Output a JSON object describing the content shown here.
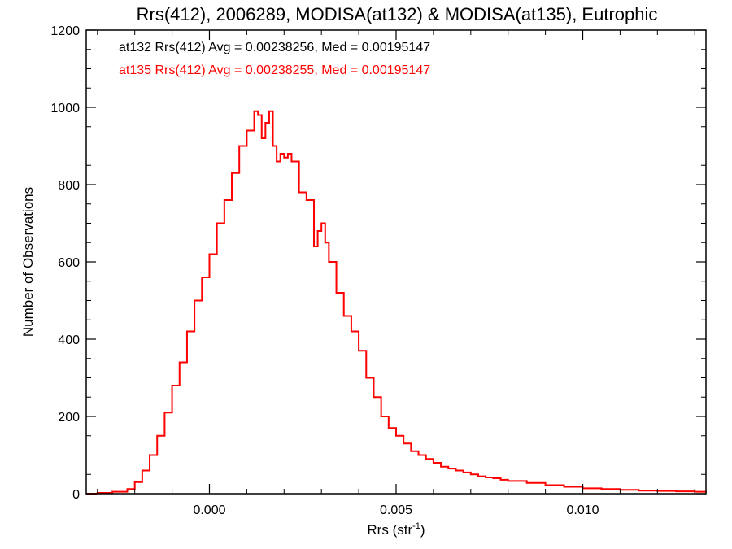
{
  "chart_data": {
    "type": "line",
    "step": true,
    "title": "Rrs(412), 2006289, MODISA(at132) & MODISA(at135), Eutrophic",
    "xlabel_main": "Rrs (str",
    "xlabel_sup": "-1",
    "xlabel_close": ")",
    "ylabel": "Number of Observations",
    "xlim": [
      -0.0033,
      0.0133
    ],
    "ylim": [
      0,
      1200
    ],
    "xticks": [
      0.0,
      0.005,
      0.01
    ],
    "xtick_labels": [
      "0.000",
      "0.005",
      "0.010"
    ],
    "yticks": [
      0,
      200,
      400,
      600,
      800,
      1000,
      1200
    ],
    "ytick_labels": [
      "0",
      "200",
      "400",
      "600",
      "800",
      "1000",
      "1200"
    ],
    "grid": false,
    "annotations": [
      {
        "text": "at132 Rrs(412) Avg = 0.00238256, Med = 0.00195147",
        "color": "#000000"
      },
      {
        "text": "at135 Rrs(412) Avg = 0.00238255, Med = 0.00195147",
        "color": "#ff0000"
      }
    ],
    "x": [
      -0.0033,
      -0.003,
      -0.0026,
      -0.0022,
      -0.002,
      -0.0018,
      -0.0016,
      -0.0014,
      -0.0012,
      -0.001,
      -0.0008,
      -0.0006,
      -0.0004,
      -0.0002,
      0.0,
      0.0002,
      0.0004,
      0.0006,
      0.0008,
      0.001,
      0.0012,
      0.0013,
      0.0014,
      0.0015,
      0.0016,
      0.0017,
      0.0018,
      0.0019,
      0.002,
      0.0021,
      0.0022,
      0.0024,
      0.0026,
      0.0028,
      0.0029,
      0.003,
      0.0031,
      0.0032,
      0.0034,
      0.0036,
      0.0038,
      0.004,
      0.0042,
      0.0044,
      0.0046,
      0.0048,
      0.005,
      0.0052,
      0.0054,
      0.0056,
      0.0058,
      0.006,
      0.0062,
      0.0064,
      0.0066,
      0.0068,
      0.007,
      0.0072,
      0.0074,
      0.0076,
      0.0078,
      0.008,
      0.0085,
      0.009,
      0.0095,
      0.01,
      0.0105,
      0.011,
      0.0115,
      0.012,
      0.0125,
      0.013,
      0.0133
    ],
    "series": [
      {
        "color": "#ff0000",
        "values": [
          0,
          2,
          5,
          12,
          30,
          60,
          100,
          150,
          210,
          280,
          340,
          420,
          500,
          560,
          620,
          700,
          760,
          830,
          900,
          940,
          990,
          980,
          920,
          960,
          990,
          900,
          860,
          880,
          870,
          880,
          860,
          780,
          760,
          640,
          680,
          700,
          650,
          600,
          520,
          460,
          420,
          370,
          300,
          250,
          200,
          170,
          150,
          130,
          110,
          100,
          90,
          80,
          70,
          65,
          60,
          55,
          50,
          45,
          42,
          40,
          36,
          33,
          28,
          22,
          18,
          14,
          12,
          10,
          8,
          7,
          6,
          5,
          4
        ]
      },
      {
        "color": "#000000",
        "values": [
          0,
          2,
          5,
          12,
          30,
          60,
          100,
          150,
          210,
          280,
          340,
          420,
          500,
          560,
          620,
          700,
          760,
          830,
          900,
          940,
          990,
          980,
          920,
          960,
          990,
          900,
          860,
          880,
          870,
          880,
          860,
          780,
          760,
          640,
          680,
          700,
          650,
          600,
          520,
          460,
          420,
          370,
          300,
          250,
          200,
          170,
          150,
          130,
          110,
          100,
          90,
          80,
          70,
          65,
          60,
          55,
          50,
          45,
          42,
          40,
          36,
          33,
          28,
          22,
          18,
          14,
          12,
          10,
          8,
          7,
          6,
          5,
          4
        ]
      }
    ]
  }
}
